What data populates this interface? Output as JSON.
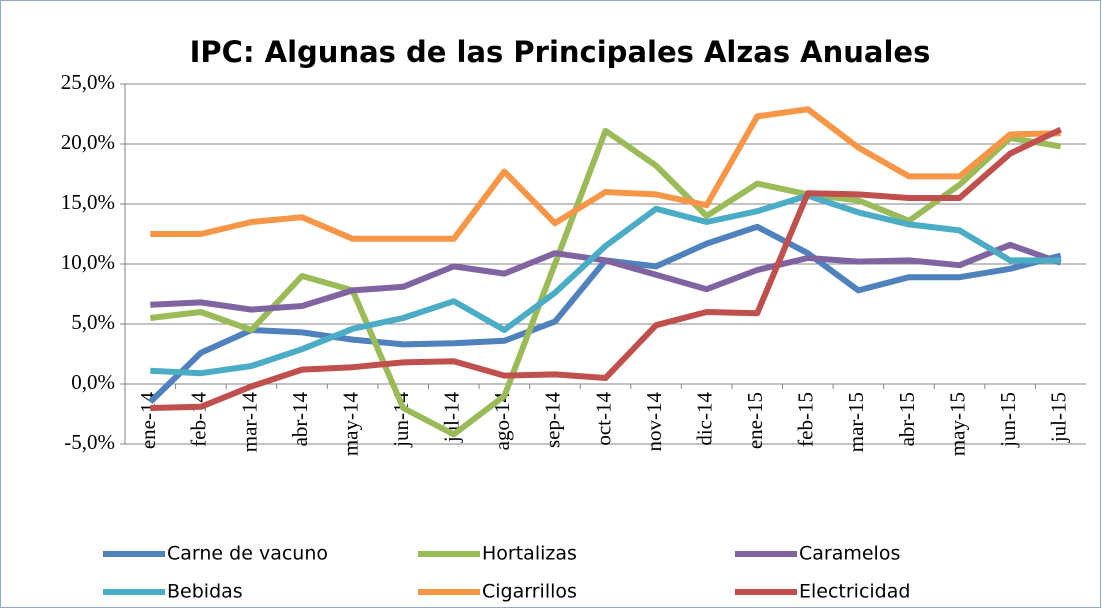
{
  "chart_data": {
    "type": "line",
    "title": "IPC: Algunas de las Principales Alzas Anuales",
    "categories": [
      "ene-14",
      "feb-14",
      "mar-14",
      "abr-14",
      "may-14",
      "jun-14",
      "jul-14",
      "ago-14",
      "sep-14",
      "oct-14",
      "nov-14",
      "dic-14",
      "ene-15",
      "feb-15",
      "mar-15",
      "abr-15",
      "may-15",
      "jun-15",
      "jul-15"
    ],
    "series": [
      {
        "name": "Carne de vacuno",
        "color": "#4f81bd",
        "values": [
          -1.5,
          2.6,
          4.5,
          4.3,
          3.7,
          3.3,
          3.4,
          3.6,
          5.2,
          10.3,
          9.8,
          11.7,
          13.1,
          10.9,
          7.8,
          8.9,
          8.9,
          9.6,
          10.7
        ]
      },
      {
        "name": "Hortalizas",
        "color": "#9bbb59",
        "values": [
          5.5,
          6.0,
          4.5,
          9.0,
          7.8,
          -2.0,
          -4.2,
          -1.0,
          10.0,
          21.1,
          18.2,
          14.0,
          16.7,
          15.8,
          15.3,
          13.6,
          16.6,
          20.5,
          19.8
        ]
      },
      {
        "name": "Caramelos",
        "color": "#8064a2",
        "values": [
          6.6,
          6.8,
          6.2,
          6.5,
          7.8,
          8.1,
          9.8,
          9.2,
          10.9,
          10.3,
          9.1,
          7.9,
          9.5,
          10.5,
          10.2,
          10.3,
          9.9,
          11.6,
          10.1
        ]
      },
      {
        "name": "Bebidas",
        "color": "#4bacc6",
        "values": [
          1.1,
          0.9,
          1.5,
          2.9,
          4.6,
          5.5,
          6.9,
          4.5,
          7.6,
          11.5,
          14.6,
          13.5,
          14.4,
          15.7,
          14.3,
          13.3,
          12.8,
          10.3,
          10.3
        ]
      },
      {
        "name": "Cigarrillos",
        "color": "#f79646",
        "values": [
          12.5,
          12.5,
          13.5,
          13.9,
          12.1,
          12.1,
          12.1,
          17.7,
          13.4,
          16.0,
          15.8,
          14.9,
          22.3,
          22.9,
          19.7,
          17.3,
          17.3,
          20.8,
          20.9
        ]
      },
      {
        "name": "Electricidad",
        "color": "#c0504d",
        "values": [
          -2.0,
          -1.9,
          -0.2,
          1.2,
          1.4,
          1.8,
          1.9,
          0.7,
          0.8,
          0.5,
          4.9,
          6.0,
          5.9,
          15.9,
          15.8,
          15.5,
          15.5,
          19.2,
          21.2
        ]
      }
    ],
    "ylim": [
      -5,
      25
    ],
    "yticks": [
      {
        "value": -5,
        "label": "-5,0%"
      },
      {
        "value": 0,
        "label": "0,0%"
      },
      {
        "value": 5,
        "label": "5,0%"
      },
      {
        "value": 10,
        "label": "10,0%"
      },
      {
        "value": 15,
        "label": "15,0%"
      },
      {
        "value": 20,
        "label": "20,0%"
      },
      {
        "value": 25,
        "label": "25,0%"
      }
    ],
    "grid": true,
    "legend": "bottom"
  }
}
